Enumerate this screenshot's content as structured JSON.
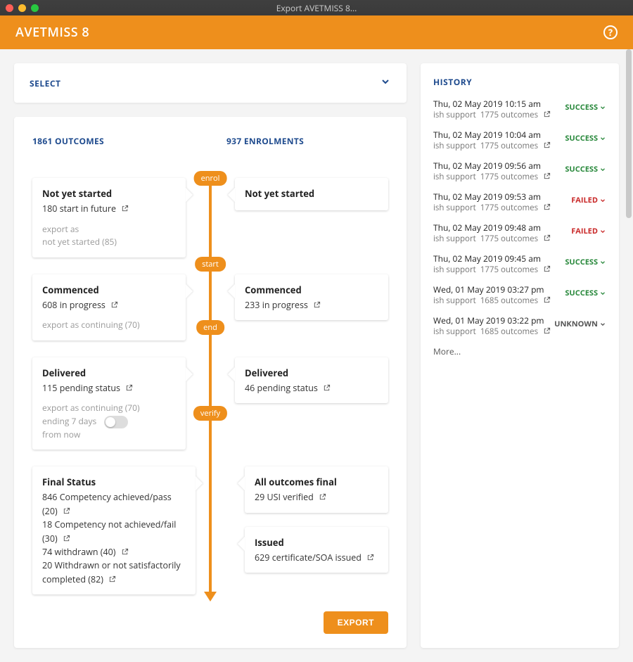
{
  "window": {
    "title": "Export AVETMISS 8..."
  },
  "header": {
    "title": "AVETMISS 8"
  },
  "select": {
    "label": "SELECT"
  },
  "columns": {
    "outcomes": "1861 OUTCOMES",
    "enrolments": "937 ENROLMENTS"
  },
  "pills": {
    "enrol": "enrol",
    "start": "start",
    "end": "end",
    "verify": "verify"
  },
  "outcomes": {
    "notStarted": {
      "title": "Not yet started",
      "sub": "180 start in future",
      "note1": "export as",
      "note2": "not yet started (85)"
    },
    "commenced": {
      "title": "Commenced",
      "sub": "608 in progress",
      "note": "export as continuing (70)"
    },
    "delivered": {
      "title": "Delivered",
      "sub": "115 pending status",
      "note1": "export as continuing (70)",
      "note2": "ending 7 days",
      "note3": "from now"
    },
    "final": {
      "title": "Final Status",
      "l1": "846 Competency achieved/pass (20)",
      "l2": "18 Competency not achieved/fail (30)",
      "l3": "74 withdrawn (40)",
      "l4": "20 Withdrawn or not satisfactorily completed (82)"
    }
  },
  "enrolments": {
    "notStarted": {
      "title": "Not yet started"
    },
    "commenced": {
      "title": "Commenced",
      "sub": "233 in progress"
    },
    "delivered": {
      "title": "Delivered",
      "sub": "46 pending status"
    },
    "allFinal": {
      "title": "All outcomes final",
      "sub": "29 USI verified"
    },
    "issued": {
      "title": "Issued",
      "sub": "629 certificate/SOA issued"
    }
  },
  "exportButton": "EXPORT",
  "history": {
    "title": "HISTORY",
    "more": "More...",
    "items": [
      {
        "date": "Thu, 02 May 2019 10:15 am",
        "who": "ish support",
        "count": "1775 outcomes",
        "status": "SUCCESS",
        "cls": "st-success"
      },
      {
        "date": "Thu, 02 May 2019 10:04 am",
        "who": "ish support",
        "count": "1775 outcomes",
        "status": "SUCCESS",
        "cls": "st-success"
      },
      {
        "date": "Thu, 02 May 2019 09:56 am",
        "who": "ish support",
        "count": "1775 outcomes",
        "status": "SUCCESS",
        "cls": "st-success"
      },
      {
        "date": "Thu, 02 May 2019 09:53 am",
        "who": "ish support",
        "count": "1775 outcomes",
        "status": "FAILED",
        "cls": "st-failed"
      },
      {
        "date": "Thu, 02 May 2019 09:48 am",
        "who": "ish support",
        "count": "1775 outcomes",
        "status": "FAILED",
        "cls": "st-failed"
      },
      {
        "date": "Thu, 02 May 2019 09:45 am",
        "who": "ish support",
        "count": "1775 outcomes",
        "status": "SUCCESS",
        "cls": "st-success"
      },
      {
        "date": "Wed, 01 May 2019 03:27 pm",
        "who": "ish support",
        "count": "1685 outcomes",
        "status": "SUCCESS",
        "cls": "st-success"
      },
      {
        "date": "Wed, 01 May 2019 03:22 pm",
        "who": "ish support",
        "count": "1685 outcomes",
        "status": "UNKNOWN",
        "cls": "st-unknown"
      }
    ]
  }
}
